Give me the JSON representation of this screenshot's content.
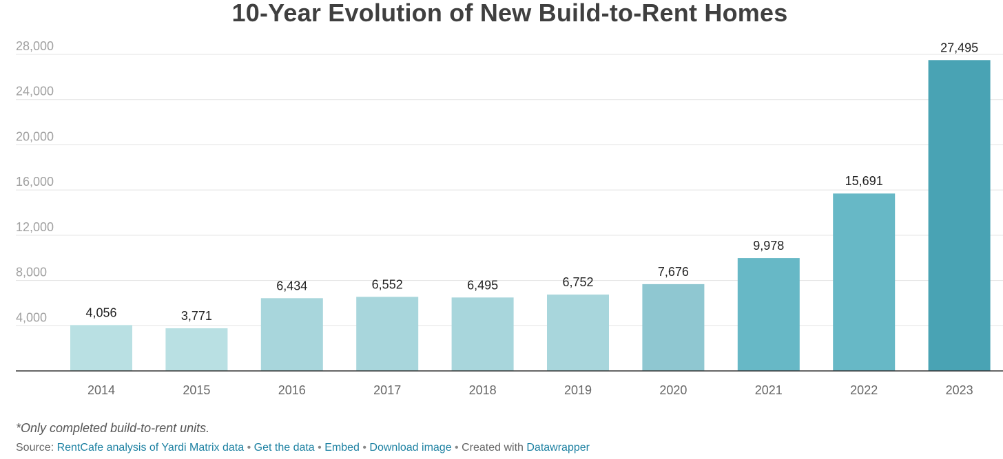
{
  "chart_data": {
    "type": "bar",
    "title": "10-Year Evolution of New Build-to-Rent Homes",
    "categories": [
      "2014",
      "2015",
      "2016",
      "2017",
      "2018",
      "2019",
      "2020",
      "2021",
      "2022",
      "2023"
    ],
    "values": [
      4056,
      3771,
      6434,
      6552,
      6495,
      6752,
      7676,
      9978,
      15691,
      27495
    ],
    "value_labels": [
      "4,056",
      "3,771",
      "6,434",
      "6,552",
      "6,495",
      "6,752",
      "7,676",
      "9,978",
      "15,691",
      "27,495"
    ],
    "colors": [
      "#b9e0e3",
      "#b9e0e3",
      "#a8d6dc",
      "#a8d6dc",
      "#a8d6dc",
      "#a8d6dc",
      "#8fc7d1",
      "#67b8c6",
      "#67b8c6",
      "#49a3b4"
    ],
    "yticks": [
      4000,
      8000,
      12000,
      16000,
      20000,
      24000,
      28000
    ],
    "ytick_labels": [
      "4,000",
      "8,000",
      "12,000",
      "16,000",
      "20,000",
      "24,000",
      "28,000"
    ],
    "ylim": [
      0,
      28000
    ],
    "xlabel": "",
    "ylabel": "",
    "grid": true,
    "legend": "none"
  },
  "footer": {
    "note": "*Only completed build-to-rent units.",
    "source_prefix": "Source: ",
    "source_link": "RentCafe analysis of Yardi Matrix data",
    "separator": " • ",
    "get_data": "Get the data",
    "embed": "Embed",
    "download": "Download image",
    "created_with": "Created with ",
    "datawrapper": "Datawrapper",
    "link_color": "#1d81a2"
  }
}
